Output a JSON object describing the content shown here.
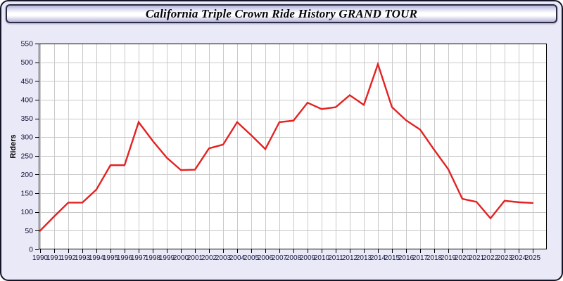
{
  "window": {
    "title": "California Triple Crown Ride History GRAND TOUR"
  },
  "chart_data": {
    "type": "line",
    "title": "California Triple Crown Ride History GRAND TOUR",
    "xlabel": "",
    "ylabel": "Riders",
    "x": [
      1990,
      1991,
      1992,
      1993,
      1994,
      1995,
      1996,
      1997,
      1998,
      1999,
      2000,
      2001,
      2002,
      2003,
      2004,
      2005,
      2006,
      2007,
      2008,
      2009,
      2010,
      2011,
      2012,
      2013,
      2014,
      2015,
      2016,
      2017,
      2018,
      2019,
      2020,
      2021,
      2022,
      2023,
      2024,
      2025
    ],
    "series": [
      {
        "name": "Riders",
        "values": [
          50,
          88,
          125,
          125,
          160,
          225,
          225,
          340,
          290,
          245,
          212,
          213,
          270,
          280,
          340,
          305,
          268,
          340,
          344,
          392,
          375,
          380,
          412,
          386,
          495,
          380,
          345,
          320,
          266,
          214,
          135,
          127,
          83,
          130,
          126,
          124
        ]
      }
    ],
    "ylim": [
      0,
      550
    ],
    "yticks": [
      0,
      50,
      100,
      150,
      200,
      250,
      300,
      350,
      400,
      450,
      500,
      550
    ],
    "grid": true,
    "legend": "none",
    "line_color": "#e32222",
    "grid_color": "#c9c9c9",
    "plot_bg": "#ffffff",
    "axis_color": "#000000",
    "tick_label_color": "#14143c"
  }
}
